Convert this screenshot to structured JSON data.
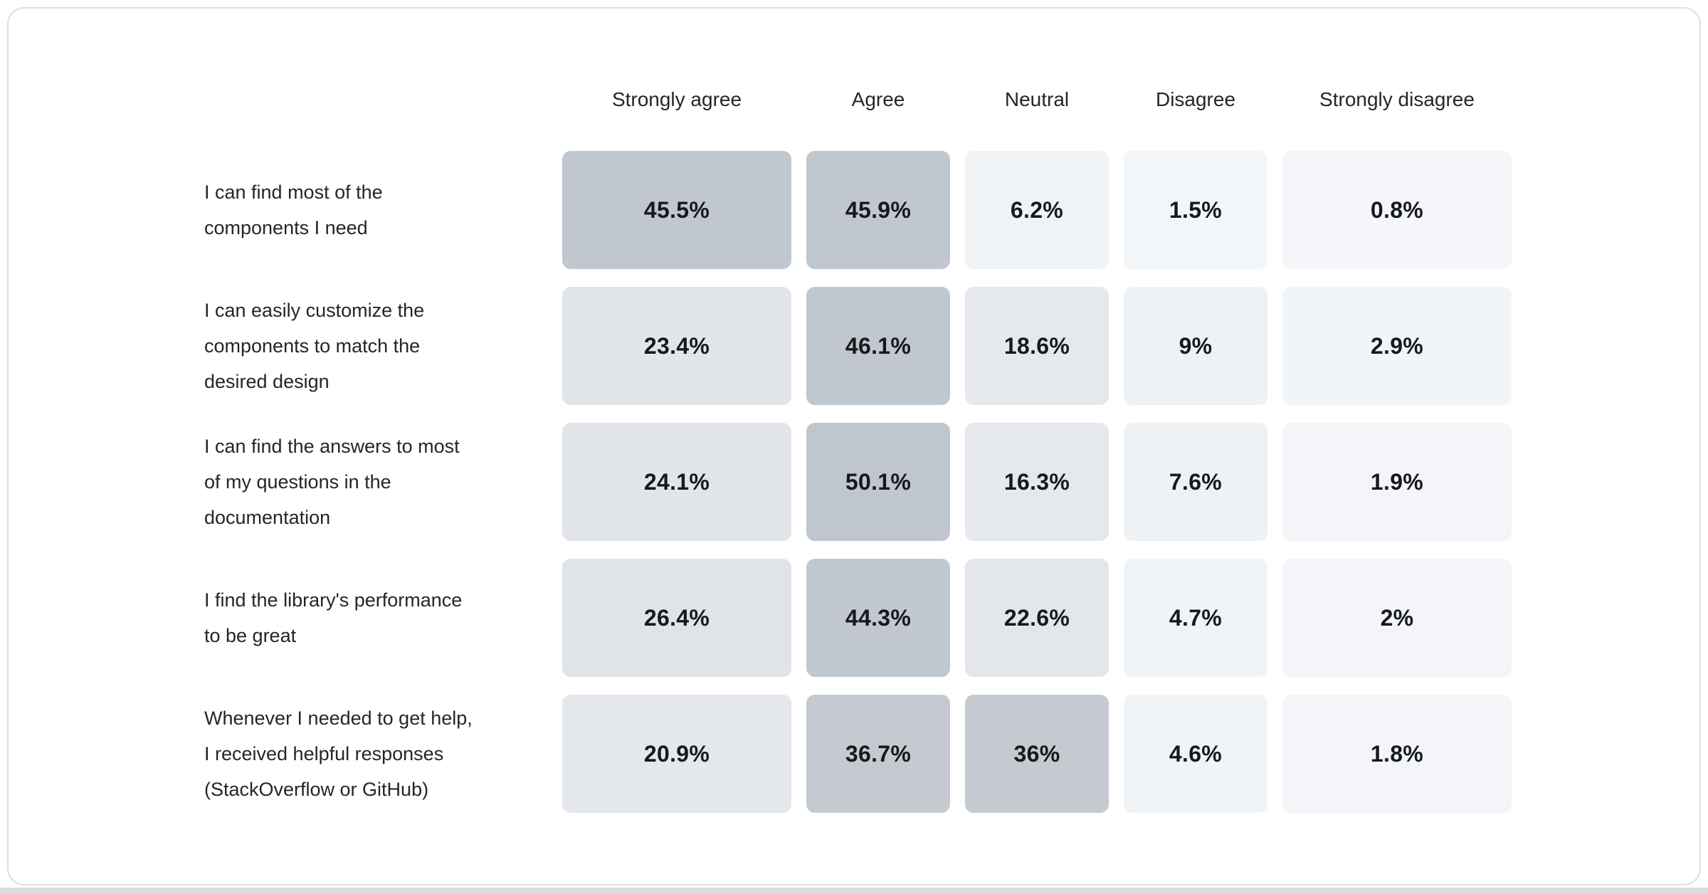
{
  "page": {
    "background": "#ffffff",
    "bottom_strip_color": "#d9dde1",
    "card_background": "#ffffff",
    "card_border_color": "#dde1e6",
    "header_text_color": "#21272a",
    "label_text_color": "#21272a",
    "value_text_color": "#16191d"
  },
  "chart_data": {
    "type": "heatmap",
    "title": "",
    "value_unit": "%",
    "legend": "none",
    "color_scale": {
      "low": "#f4f6f9",
      "mid": "#e3e6ea",
      "high": "#c1c7ce"
    },
    "columns": [
      "Strongly agree",
      "Agree",
      "Neutral",
      "Disagree",
      "Strongly disagree"
    ],
    "rows": [
      {
        "label": "I can find most of the components I need",
        "label_lines": [
          "I can find most of the",
          "components I need"
        ],
        "values": [
          45.5,
          45.9,
          6.2,
          1.5,
          0.8
        ],
        "display": [
          "45.5%",
          "45.9%",
          "6.2%",
          "1.5%",
          "0.8%"
        ],
        "colors": [
          "#c1c7ce",
          "#c1c7ce",
          "#f0f3f6",
          "#f3f6f8",
          "#f4f6f9"
        ]
      },
      {
        "label": "I can easily customize the components to match the desired design",
        "label_lines": [
          "I can easily customize the",
          "components to match the",
          "desired design"
        ],
        "values": [
          23.4,
          46.1,
          18.6,
          9,
          2.9
        ],
        "display": [
          "23.4%",
          "46.1%",
          "18.6%",
          "9%",
          "2.9%"
        ],
        "colors": [
          "#e2e5e9",
          "#c1c7ce",
          "#e5e8ec",
          "#eef1f5",
          "#f2f5f8"
        ]
      },
      {
        "label": "I can find the answers to most of my questions in the documentation",
        "label_lines": [
          "I can find the answers to most",
          "of my questions in the",
          "documentation"
        ],
        "values": [
          24.1,
          50.1,
          16.3,
          7.6,
          1.9
        ],
        "display": [
          "24.1%",
          "50.1%",
          "16.3%",
          "7.6%",
          "1.9%"
        ],
        "colors": [
          "#e2e5e9",
          "#c0c6cd",
          "#e5e8ec",
          "#eff2f5",
          "#f3f5f8"
        ]
      },
      {
        "label": "I find the library's performance to be great",
        "label_lines": [
          "I find the library's performance",
          "to be great"
        ],
        "values": [
          26.4,
          44.3,
          22.6,
          4.7,
          2
        ],
        "display": [
          "26.4%",
          "44.3%",
          "22.6%",
          "4.7%",
          "2%"
        ],
        "colors": [
          "#e0e3e8",
          "#c2c8cf",
          "#e3e6ea",
          "#f1f4f7",
          "#f3f5f8"
        ]
      },
      {
        "label": "Whenever I needed to get help, I received helpful responses (StackOverflow or GitHub)",
        "label_lines": [
          "Whenever I needed to get help,",
          "I received helpful responses",
          "(StackOverflow or GitHub)"
        ],
        "values": [
          20.9,
          36.7,
          36,
          4.6,
          1.8
        ],
        "display": [
          "20.9%",
          "36.7%",
          "36%",
          "4.6%",
          "1.8%"
        ],
        "colors": [
          "#e4e7eb",
          "#c4cad0",
          "#c4cad0",
          "#f1f4f7",
          "#f3f5f8"
        ]
      }
    ]
  }
}
